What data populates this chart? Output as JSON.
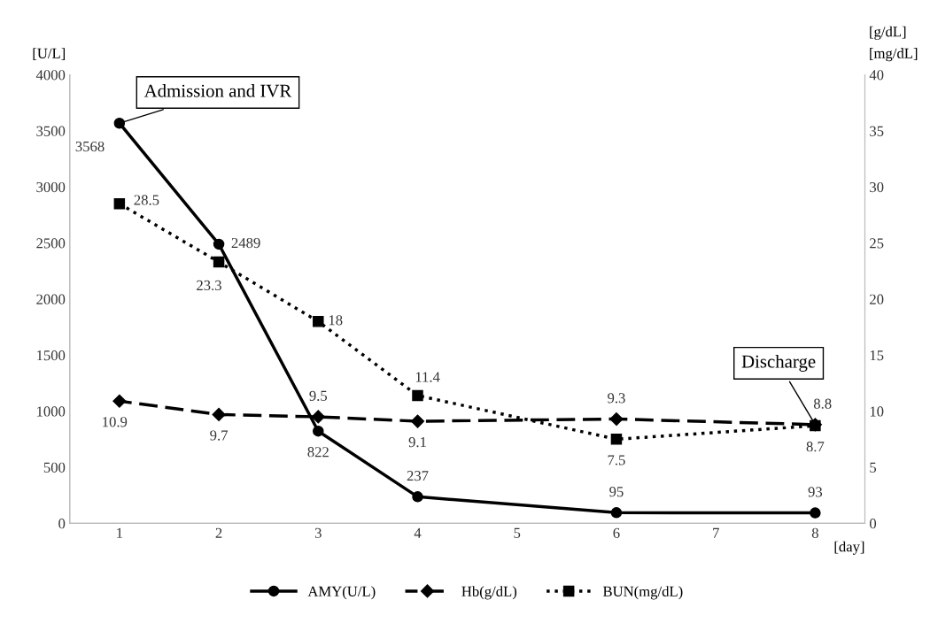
{
  "chart_data": {
    "type": "line",
    "ylabel": "[U/L]",
    "y2label": "[g/dL]\n[mg/dL]",
    "xlabel": "[day]",
    "x": [
      1,
      2,
      3,
      4,
      6,
      8
    ],
    "series": [
      {
        "name": "AMY(U/L)",
        "color": "#000000",
        "values": [
          3568,
          2489,
          822,
          237,
          95,
          93
        ],
        "marker": "circle",
        "line_style": "solid"
      },
      {
        "name": "Hb(g/dL)",
        "color": "#000000",
        "values": [
          10.9,
          9.7,
          9.5,
          9.1,
          9.3,
          8.8
        ],
        "axis": "y2",
        "marker": "diamond",
        "line_style": "dashed"
      },
      {
        "name": "BUN(mg/dL)",
        "color": "#000000",
        "values": [
          28.5,
          23.3,
          18,
          11.4,
          7.5,
          8.7
        ],
        "axis": "y2",
        "marker": "square",
        "line_style": "dotted"
      }
    ],
    "xlim": [
      0.5,
      8.5
    ],
    "xticks": [
      1,
      2,
      3,
      4,
      5,
      6,
      7,
      8
    ],
    "ylim": [
      0,
      4000
    ],
    "yticks": [
      0,
      500,
      1000,
      1500,
      2000,
      2500,
      3000,
      3500,
      4000
    ],
    "y2lim": [
      0,
      40
    ],
    "y2ticks": [
      0,
      5,
      10,
      15,
      20,
      25,
      30,
      35,
      40
    ],
    "annotations": [
      {
        "text": "Admission and IVR",
        "x": 1,
        "y": 3568
      },
      {
        "text": "Discharge",
        "x": 8,
        "y": 880
      }
    ],
    "data_labels": true,
    "grid": false,
    "legend": "bottom"
  }
}
